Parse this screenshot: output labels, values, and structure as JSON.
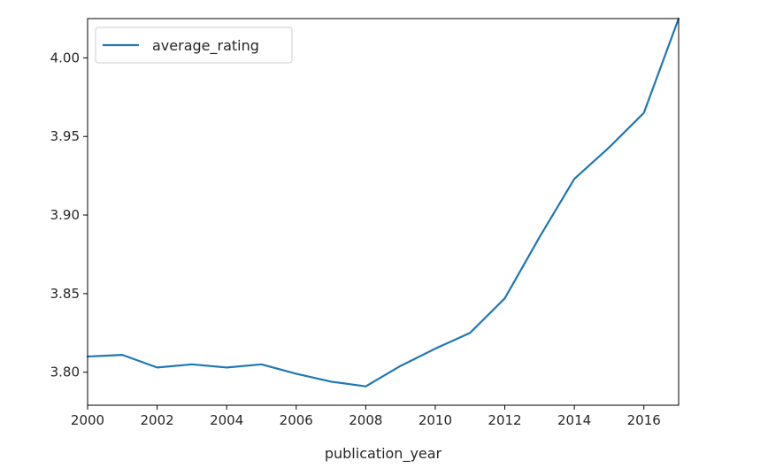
{
  "chart_data": {
    "type": "line",
    "title": "",
    "xlabel": "publication_year",
    "ylabel": "",
    "xlim": [
      2000,
      2017
    ],
    "ylim": [
      3.779,
      4.025
    ],
    "xticks": [
      "2000",
      "2002",
      "2004",
      "2006",
      "2008",
      "2010",
      "2012",
      "2014",
      "2016"
    ],
    "yticks": [
      "3.80",
      "3.85",
      "3.90",
      "3.95",
      "4.00"
    ],
    "x": [
      2000,
      2001,
      2002,
      2003,
      2004,
      2005,
      2006,
      2007,
      2008,
      2009,
      2010,
      2011,
      2012,
      2013,
      2014,
      2015,
      2016,
      2017
    ],
    "series": [
      {
        "name": "average_rating",
        "color": "#1f77b4",
        "values": [
          3.81,
          3.811,
          3.803,
          3.805,
          3.803,
          3.805,
          3.799,
          3.794,
          3.791,
          3.804,
          3.815,
          3.825,
          3.847,
          3.886,
          3.923,
          3.943,
          3.965,
          4.025
        ]
      }
    ],
    "legend": {
      "position": "top-left",
      "entries": [
        "average_rating"
      ]
    },
    "grid": false
  }
}
